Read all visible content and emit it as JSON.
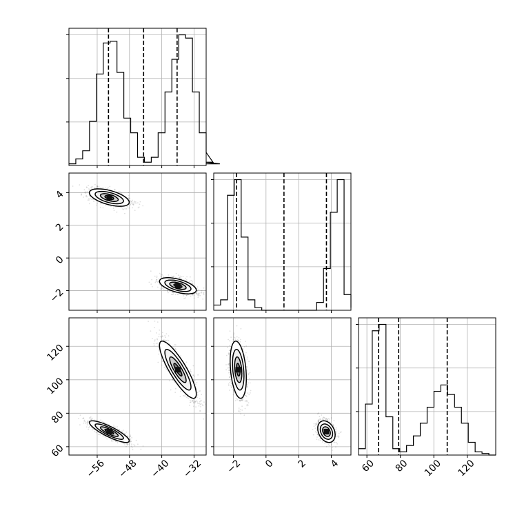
{
  "chart_data": {
    "type": "corner",
    "parameters": [
      {
        "range": [
          -63,
          -29
        ],
        "ticks": [
          -56,
          -48,
          -40,
          -32
        ]
      },
      {
        "range": [
          -3.2,
          5.2
        ],
        "ticks": [
          -2,
          0,
          2,
          4
        ]
      },
      {
        "range": [
          55,
          137
        ],
        "ticks": [
          60,
          80,
          100,
          120
        ]
      }
    ],
    "ytick_labels": {
      "row1": [
        "4",
        "2",
        "0",
        "−2"
      ],
      "row2": [
        "120",
        "100",
        "80",
        "60"
      ]
    },
    "xtick_labels": {
      "col0": [
        "−56",
        "−48",
        "−40",
        "−32"
      ],
      "col1": [
        "−2",
        "0",
        "2",
        "4"
      ],
      "col2": [
        "60",
        "80",
        "100",
        "120"
      ]
    },
    "quantiles": [
      [
        -53.2,
        -44.5,
        -36.2
      ],
      [
        -1.8,
        1.1,
        3.7
      ],
      [
        67,
        79,
        108
      ]
    ],
    "histograms": [
      {
        "edges_start": -63,
        "bin_width": 1.7,
        "counts": [
          1,
          4,
          9,
          27,
          56,
          75,
          76,
          57,
          29,
          20,
          5,
          2,
          5,
          20,
          45,
          65,
          80,
          78,
          45,
          20,
          8,
          2,
          1
        ]
      },
      {
        "edges_start": -3.2,
        "bin_width": 0.42,
        "counts": [
          4,
          8,
          88,
          100,
          56,
          8,
          2,
          0,
          0,
          0,
          0,
          0,
          0,
          0,
          0,
          6,
          32,
          75,
          100,
          12,
          2
        ]
      },
      {
        "edges_start": 55,
        "bin_width": 4.1,
        "counts": [
          4,
          32,
          78,
          82,
          24,
          4,
          2,
          6,
          12,
          20,
          30,
          40,
          44,
          38,
          30,
          20,
          8,
          2,
          1,
          0
        ]
      }
    ],
    "clusters": [
      {
        "mean": [
          -53,
          3.7,
          69
        ],
        "sd": [
          2.6,
          0.28,
          3.4
        ]
      },
      {
        "mean": [
          -36,
          -1.7,
          106
        ],
        "sd": [
          2.4,
          0.26,
          9.0
        ]
      }
    ],
    "correlations": {
      "0_1": -0.55,
      "0_2": -0.85,
      "1_2": -0.3
    },
    "grid": true,
    "quantile_line_style": "dashed"
  }
}
